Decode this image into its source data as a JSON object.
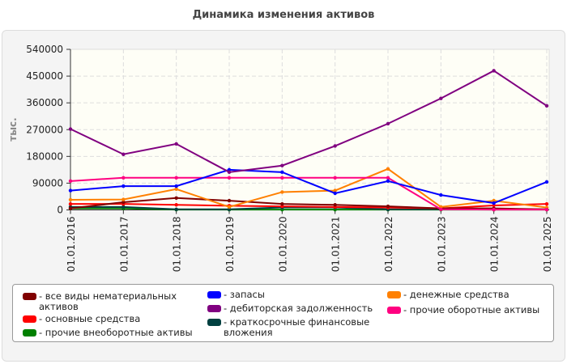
{
  "chart_data": {
    "type": "line",
    "title": "Динамика изменения активов",
    "ylabel": "тыс.",
    "xlabel": "",
    "ylim": [
      0,
      540000
    ],
    "yticks": [
      "0",
      "90000",
      "180000",
      "270000",
      "360000",
      "450000",
      "540000"
    ],
    "categories": [
      "01.01.2016",
      "01.01.2017",
      "01.01.2018",
      "01.01.2019",
      "01.01.2020",
      "01.01.2021",
      "01.01.2022",
      "01.01.2023",
      "01.01.2024",
      "01.01.2025"
    ],
    "grid": true,
    "legend_position": "bottom",
    "series": [
      {
        "name": "- все виды нематериальных активов",
        "color": "#800000",
        "values": [
          5000,
          26000,
          40000,
          31000,
          20000,
          17000,
          12000,
          5000,
          5000,
          2000
        ]
      },
      {
        "name": "- запасы",
        "color": "#0000ff",
        "values": [
          65000,
          80000,
          80000,
          135000,
          127000,
          56000,
          97000,
          50000,
          23000,
          94000
        ]
      },
      {
        "name": "- денежные средства",
        "color": "#ff8000",
        "values": [
          34000,
          35000,
          70000,
          10000,
          60000,
          65000,
          138000,
          10000,
          31000,
          8000
        ]
      },
      {
        "name": "- основные средства",
        "color": "#ff0000",
        "values": [
          20000,
          20000,
          17000,
          14000,
          12000,
          10000,
          8000,
          5000,
          15000,
          20000
        ]
      },
      {
        "name": "- дебиторская задолженность",
        "color": "#800080",
        "values": [
          272000,
          187000,
          222000,
          127000,
          149000,
          215000,
          290000,
          375000,
          468000,
          350000
        ]
      },
      {
        "name": "- прочие оборотные активы",
        "color": "#ff0080",
        "values": [
          97000,
          108000,
          108000,
          108000,
          108000,
          108000,
          108000,
          2000,
          1000,
          1000
        ]
      },
      {
        "name": "- прочие внеоборотные активы",
        "color": "#008000",
        "values": [
          5000,
          5000,
          1000,
          1000,
          1000,
          1000,
          1000,
          1000,
          1000,
          1000
        ]
      },
      {
        "name": "- краткосрочные финансовые вложения",
        "color": "#004040",
        "values": [
          10000,
          10000,
          2000,
          2000,
          8000,
          8000,
          2000,
          2000,
          2000,
          2000
        ]
      }
    ]
  }
}
